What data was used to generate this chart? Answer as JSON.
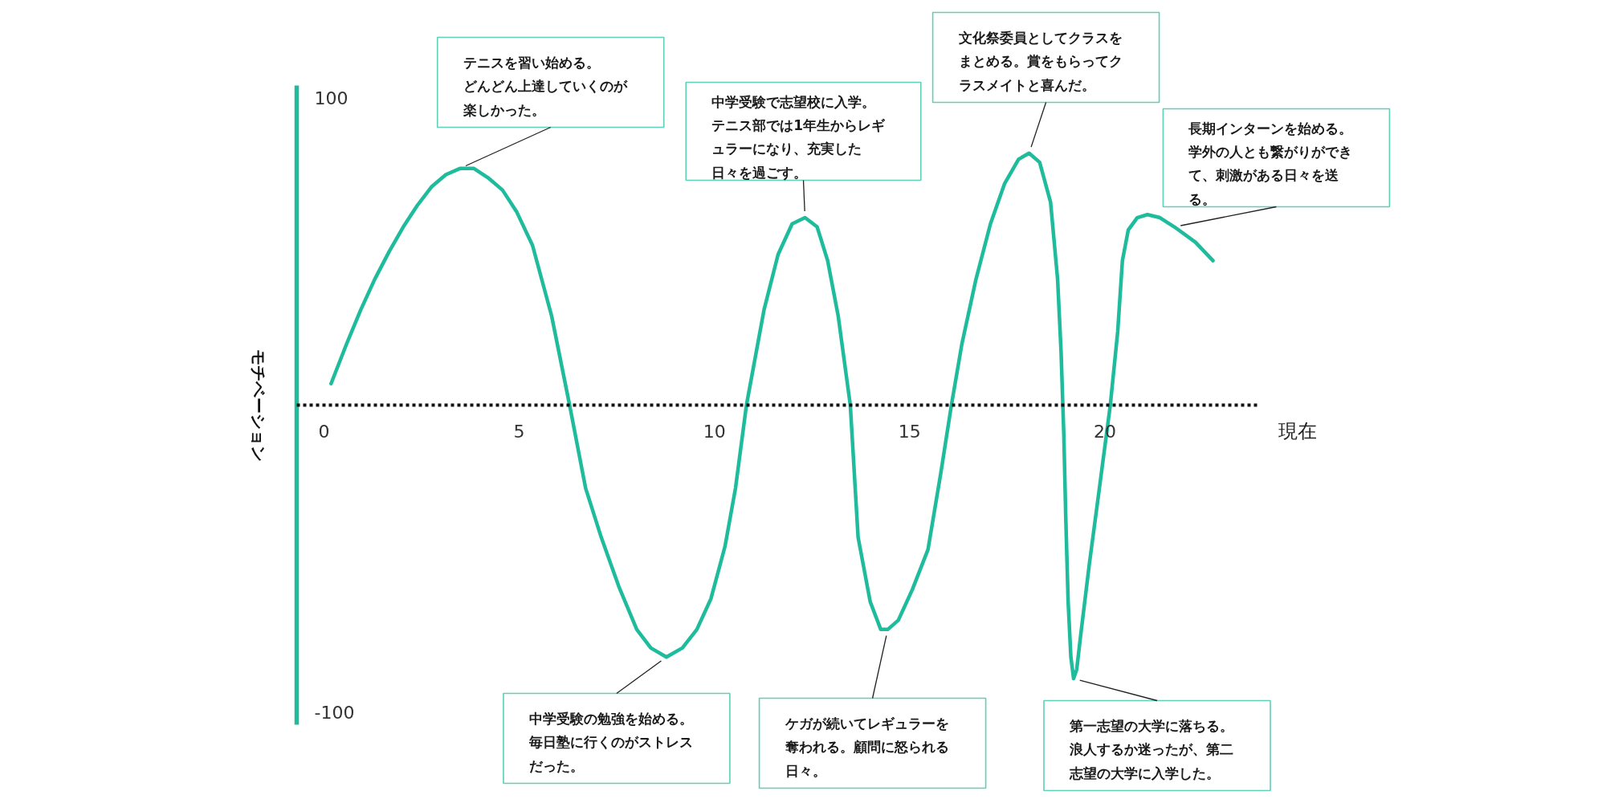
{
  "chart_data": {
    "type": "line",
    "xlabel": "現在",
    "ylabel": "モチベーション",
    "x": [
      0.18,
      0.58,
      0.94,
      1.3,
      1.67,
      2.03,
      2.39,
      2.75,
      3.12,
      3.48,
      3.84,
      4.2,
      4.57,
      4.93,
      5.34,
      5.83,
      6.29,
      6.7,
      7.1,
      7.55,
      8.01,
      8.37,
      8.77,
      9.18,
      9.55,
      9.91,
      10.27,
      10.54,
      10.82,
      11.27,
      11.63,
      11.99,
      12.32,
      12.63,
      12.9,
      13.17,
      13.48,
      13.68,
      13.99,
      14.26,
      14.44,
      14.71,
      15.07,
      15.47,
      15.8,
      16.07,
      16.34,
      16.7,
      17.07,
      17.43,
      17.79,
      18.06,
      18.33,
      18.61,
      18.79,
      18.88,
      18.95,
      19.0,
      19.06,
      19.13,
      19.2,
      19.28,
      19.38,
      19.6,
      19.84,
      20.14,
      20.33,
      20.45,
      20.6,
      20.83,
      21.09,
      21.41,
      21.78,
      22.32,
      22.77
    ],
    "series": [
      {
        "color": "#1ebc9c",
        "values": [
          7,
          20,
          31,
          41,
          50,
          58,
          65,
          71,
          75,
          77,
          77,
          74,
          70,
          63,
          52,
          29,
          0,
          -27,
          -43,
          -59,
          -73,
          -79,
          -82,
          -79,
          -73,
          -63,
          -46,
          -27,
          0,
          31,
          49,
          59,
          61,
          58,
          47,
          29,
          0,
          -43,
          -64,
          -73,
          -73,
          -70,
          -60,
          -47,
          -22,
          0,
          20,
          41,
          59,
          72,
          80,
          82,
          79,
          66,
          41,
          17,
          -10,
          -37,
          -64,
          -82,
          -89,
          -86,
          -75,
          -52,
          -29,
          0,
          24,
          47,
          57,
          61,
          62,
          61,
          58,
          53,
          47
        ]
      }
    ],
    "xlim": [
      -0.7,
      23.9
    ],
    "ylim": [
      -104,
      104
    ],
    "xticks": [
      0,
      5,
      10,
      15,
      20
    ],
    "yticks": [
      -100,
      100
    ],
    "ref_lines": [
      {
        "axis": "y",
        "value": 0,
        "color": "#111111",
        "line_style": "dotted"
      }
    ],
    "annotations": [
      {
        "text": "テニスを習い始める。どんどん上達していくのが楽しかった。",
        "x": 3.48,
        "y": 77
      },
      {
        "text": "中学受験の勉強を始める。毎日塾に行くのがストレスだった。",
        "x": 8.77,
        "y": -82
      },
      {
        "text": "中学受験で志望校に入学。テニス部では1年生からレギュラーになり、充実した日々を過ごす。",
        "x": 12.32,
        "y": 61
      },
      {
        "text": "ケガが続いてレギュラーを奪われる。顧問に怒られる日々。",
        "x": 14.44,
        "y": -73
      },
      {
        "text": "文化祭委員としてクラスをまとめる。賞をもらってクラスメイトと喜んだ。",
        "x": 18.06,
        "y": 82
      },
      {
        "text": "第一志望の大学に落ちる。浪人するか迷ったが、第二志望の大学に入学した。",
        "x": 19.2,
        "y": -89
      },
      {
        "text": "長期インターンを始める。学外の人とも繋がりができて、刺激がある日々を送る。",
        "x": 21.78,
        "y": 58
      }
    ]
  }
}
